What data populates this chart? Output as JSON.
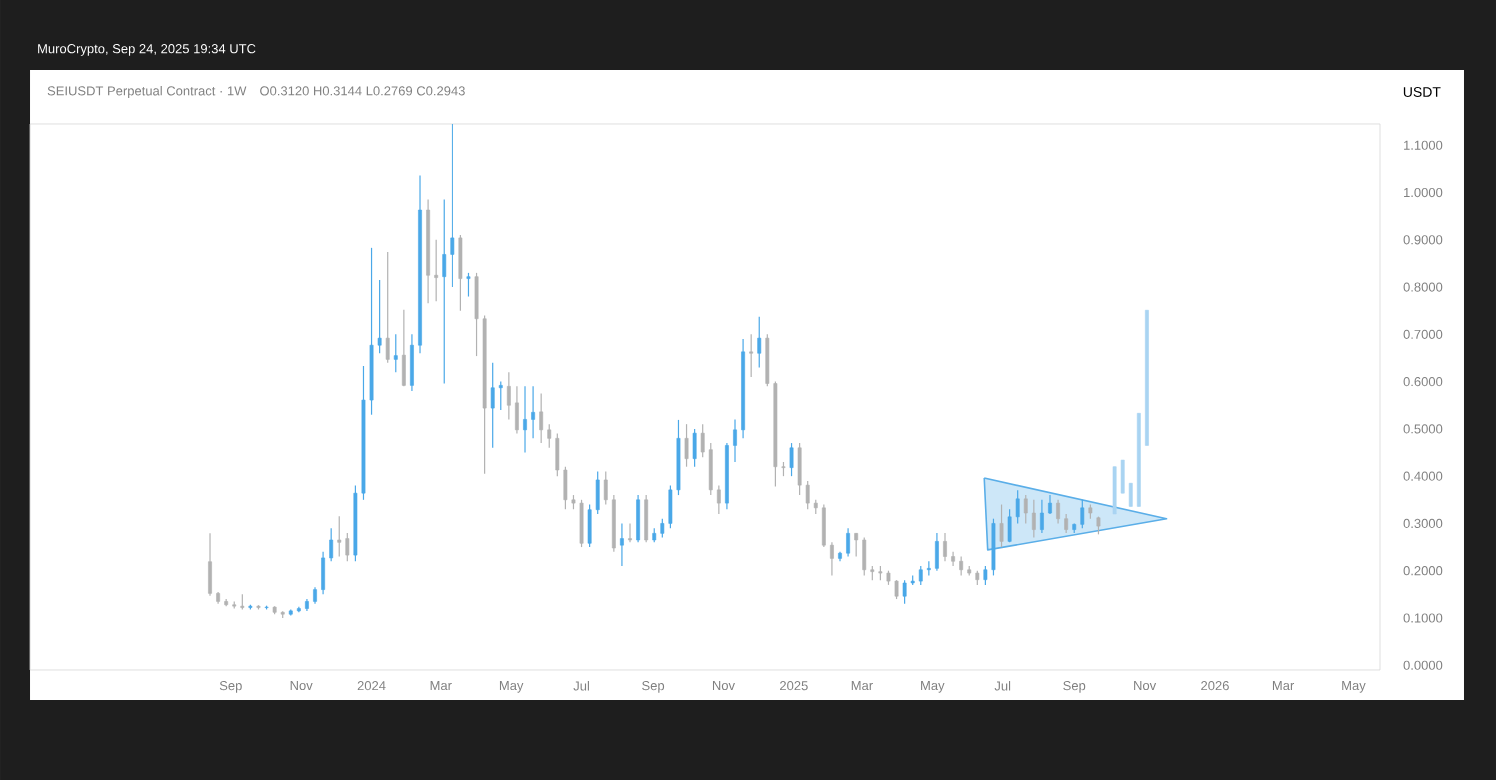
{
  "chart_data": {
    "type": "candlestick",
    "title": "SEIUSDT Perpetual Contract · 1W",
    "subtitle": "O0.3120  H0.3144  L0.2769  C0.2943",
    "ylabel": "USDT",
    "annotations": [
      "MuroCrypto, Sep 24, 2025 19:34 UTC"
    ],
    "xlim": [
      "2023-03-11",
      "2026-05-24"
    ],
    "ylim": [
      -0.01,
      1.145
    ],
    "xticks": [
      {
        "value": "2023-09-01",
        "label": "Sep"
      },
      {
        "value": "2023-11-01",
        "label": "Nov"
      },
      {
        "value": "2024-01-01",
        "label": "2024"
      },
      {
        "value": "2024-03-01",
        "label": "Mar"
      },
      {
        "value": "2024-05-01",
        "label": "May"
      },
      {
        "value": "2024-07-01",
        "label": "Jul"
      },
      {
        "value": "2024-09-01",
        "label": "Sep"
      },
      {
        "value": "2024-11-01",
        "label": "Nov"
      },
      {
        "value": "2025-01-01",
        "label": "2025"
      },
      {
        "value": "2025-03-01",
        "label": "Mar"
      },
      {
        "value": "2025-05-01",
        "label": "May"
      },
      {
        "value": "2025-07-01",
        "label": "Jul"
      },
      {
        "value": "2025-09-01",
        "label": "Sep"
      },
      {
        "value": "2025-11-01",
        "label": "Nov"
      },
      {
        "value": "2026-01-01",
        "label": "2026"
      },
      {
        "value": "2026-03-01",
        "label": "Mar"
      },
      {
        "value": "2026-05-01",
        "label": "May"
      }
    ],
    "yticks": [
      {
        "value": 0,
        "label": "0.0000"
      },
      {
        "value": 0.1,
        "label": "0.1000"
      },
      {
        "value": 0.2,
        "label": "0.2000"
      },
      {
        "value": 0.3,
        "label": "0.3000"
      },
      {
        "value": 0.4,
        "label": "0.4000"
      },
      {
        "value": 0.5,
        "label": "0.5000"
      },
      {
        "value": 0.6,
        "label": "0.6000"
      },
      {
        "value": 0.7,
        "label": "0.7000"
      },
      {
        "value": 0.8,
        "label": "0.8000"
      },
      {
        "value": 0.9,
        "label": "0.9000"
      },
      {
        "value": 1.0,
        "label": "1.0000"
      },
      {
        "value": 1.1,
        "label": "1.1000"
      }
    ],
    "series": [
      {
        "type": "area",
        "color": "#5aaee8",
        "x": [
          "2025-06-15",
          "2025-11-20",
          "2025-06-18",
          "2025-06-15"
        ],
        "values": [
          0.396,
          0.31,
          0.244,
          0.396
        ]
      },
      {
        "x": [
          "2023-08-14",
          "2023-08-21",
          "2023-08-28",
          "2023-09-04",
          "2023-09-11",
          "2023-09-18",
          "2023-09-25",
          "2023-10-02",
          "2023-10-09",
          "2023-10-16",
          "2023-10-23",
          "2023-10-30",
          "2023-11-06",
          "2023-11-13",
          "2023-11-20",
          "2023-11-27",
          "2023-12-04",
          "2023-12-11",
          "2023-12-18",
          "2023-12-25",
          "2024-01-01",
          "2024-01-08",
          "2024-01-15",
          "2024-01-22",
          "2024-01-29",
          "2024-02-05",
          "2024-02-12",
          "2024-02-19",
          "2024-02-26",
          "2024-03-04",
          "2024-03-11",
          "2024-03-18",
          "2024-03-25",
          "2024-04-01",
          "2024-04-08",
          "2024-04-15",
          "2024-04-22",
          "2024-04-29",
          "2024-05-06",
          "2024-05-13",
          "2024-05-20",
          "2024-05-27",
          "2024-06-03",
          "2024-06-10",
          "2024-06-17",
          "2024-06-24",
          "2024-07-01",
          "2024-07-08",
          "2024-07-15",
          "2024-07-22",
          "2024-07-29",
          "2024-08-05",
          "2024-08-12",
          "2024-08-19",
          "2024-08-26",
          "2024-09-02",
          "2024-09-09",
          "2024-09-16",
          "2024-09-23",
          "2024-09-30",
          "2024-10-07",
          "2024-10-14",
          "2024-10-21",
          "2024-10-28",
          "2024-11-04",
          "2024-11-11",
          "2024-11-18",
          "2024-11-25",
          "2024-12-02",
          "2024-12-09",
          "2024-12-16",
          "2024-12-23",
          "2024-12-30",
          "2025-01-06",
          "2025-01-13",
          "2025-01-20",
          "2025-01-27",
          "2025-02-03",
          "2025-02-10",
          "2025-02-17",
          "2025-02-24",
          "2025-03-03",
          "2025-03-10",
          "2025-03-17",
          "2025-03-24",
          "2025-03-31",
          "2025-04-07",
          "2025-04-14",
          "2025-04-21",
          "2025-04-28",
          "2025-05-05",
          "2025-05-12",
          "2025-05-19",
          "2025-05-26",
          "2025-06-02",
          "2025-06-09",
          "2025-06-16",
          "2025-06-23",
          "2025-06-30",
          "2025-07-07",
          "2025-07-14",
          "2025-07-21",
          "2025-07-28",
          "2025-08-04",
          "2025-08-11",
          "2025-08-18",
          "2025-08-25",
          "2025-09-01",
          "2025-09-08",
          "2025-09-15",
          "2025-09-22"
        ],
        "ohlc": [
          [
            0.219,
            0.279,
            0.147,
            0.152
          ],
          [
            0.152,
            0.155,
            0.13,
            0.135
          ],
          [
            0.135,
            0.14,
            0.125,
            0.128
          ],
          [
            0.128,
            0.135,
            0.12,
            0.125
          ],
          [
            0.125,
            0.15,
            0.118,
            0.122
          ],
          [
            0.122,
            0.128,
            0.118,
            0.125
          ],
          [
            0.125,
            0.127,
            0.118,
            0.122
          ],
          [
            0.122,
            0.126,
            0.118,
            0.123
          ],
          [
            0.123,
            0.125,
            0.108,
            0.112
          ],
          [
            0.112,
            0.114,
            0.1,
            0.108
          ],
          [
            0.108,
            0.118,
            0.105,
            0.115
          ],
          [
            0.115,
            0.124,
            0.112,
            0.12
          ],
          [
            0.12,
            0.14,
            0.115,
            0.135
          ],
          [
            0.135,
            0.165,
            0.13,
            0.16
          ],
          [
            0.16,
            0.24,
            0.15,
            0.227
          ],
          [
            0.227,
            0.29,
            0.22,
            0.265
          ],
          [
            0.265,
            0.315,
            0.23,
            0.26
          ],
          [
            0.268,
            0.28,
            0.22,
            0.233
          ],
          [
            0.233,
            0.38,
            0.22,
            0.364
          ],
          [
            0.364,
            0.633,
            0.35,
            0.561
          ],
          [
            0.561,
            0.883,
            0.53,
            0.677
          ],
          [
            0.677,
            0.815,
            0.66,
            0.692
          ],
          [
            0.692,
            0.874,
            0.64,
            0.647
          ],
          [
            0.647,
            0.7,
            0.62,
            0.655
          ],
          [
            0.656,
            0.752,
            0.59,
            0.592
          ],
          [
            0.592,
            0.7,
            0.58,
            0.677
          ],
          [
            0.677,
            1.036,
            0.66,
            0.963
          ],
          [
            0.963,
            0.985,
            0.766,
            0.825
          ],
          [
            0.825,
            0.9,
            0.77,
            0.82
          ],
          [
            0.822,
            0.985,
            0.596,
            0.869
          ],
          [
            0.869,
            1.146,
            0.8,
            0.904
          ],
          [
            0.904,
            0.91,
            0.75,
            0.818
          ],
          [
            0.818,
            0.83,
            0.78,
            0.822
          ],
          [
            0.822,
            0.83,
            0.654,
            0.733
          ],
          [
            0.733,
            0.74,
            0.405,
            0.544
          ],
          [
            0.544,
            0.64,
            0.46,
            0.587
          ],
          [
            0.587,
            0.6,
            0.54,
            0.592
          ],
          [
            0.59,
            0.62,
            0.52,
            0.55
          ],
          [
            0.555,
            0.59,
            0.49,
            0.498
          ],
          [
            0.498,
            0.59,
            0.45,
            0.52
          ],
          [
            0.52,
            0.59,
            0.48,
            0.535
          ],
          [
            0.536,
            0.575,
            0.47,
            0.498
          ],
          [
            0.498,
            0.51,
            0.46,
            0.48
          ],
          [
            0.48,
            0.49,
            0.4,
            0.413
          ],
          [
            0.413,
            0.42,
            0.33,
            0.35
          ],
          [
            0.35,
            0.36,
            0.33,
            0.343
          ],
          [
            0.343,
            0.35,
            0.25,
            0.258
          ],
          [
            0.258,
            0.34,
            0.25,
            0.329
          ],
          [
            0.329,
            0.41,
            0.32,
            0.392
          ],
          [
            0.392,
            0.41,
            0.34,
            0.35
          ],
          [
            0.35,
            0.36,
            0.24,
            0.248
          ],
          [
            0.254,
            0.3,
            0.21,
            0.268
          ],
          [
            0.268,
            0.3,
            0.26,
            0.265
          ],
          [
            0.265,
            0.36,
            0.26,
            0.35
          ],
          [
            0.35,
            0.36,
            0.26,
            0.265
          ],
          [
            0.265,
            0.29,
            0.26,
            0.279
          ],
          [
            0.279,
            0.31,
            0.27,
            0.3
          ],
          [
            0.3,
            0.38,
            0.29,
            0.371
          ],
          [
            0.371,
            0.519,
            0.36,
            0.48
          ],
          [
            0.48,
            0.51,
            0.42,
            0.437
          ],
          [
            0.437,
            0.5,
            0.42,
            0.491
          ],
          [
            0.491,
            0.51,
            0.44,
            0.451
          ],
          [
            0.456,
            0.47,
            0.36,
            0.371
          ],
          [
            0.371,
            0.38,
            0.32,
            0.343
          ],
          [
            0.343,
            0.47,
            0.33,
            0.465
          ],
          [
            0.465,
            0.52,
            0.43,
            0.498
          ],
          [
            0.498,
            0.69,
            0.48,
            0.663
          ],
          [
            0.663,
            0.7,
            0.61,
            0.66
          ],
          [
            0.66,
            0.737,
            0.63,
            0.692
          ],
          [
            0.692,
            0.7,
            0.59,
            0.596
          ],
          [
            0.596,
            0.6,
            0.378,
            0.42
          ],
          [
            0.42,
            0.43,
            0.4,
            0.418
          ],
          [
            0.418,
            0.47,
            0.4,
            0.46
          ],
          [
            0.46,
            0.47,
            0.36,
            0.381
          ],
          [
            0.381,
            0.39,
            0.33,
            0.343
          ],
          [
            0.343,
            0.35,
            0.32,
            0.333
          ],
          [
            0.333,
            0.34,
            0.25,
            0.254
          ],
          [
            0.254,
            0.26,
            0.19,
            0.226
          ],
          [
            0.226,
            0.24,
            0.22,
            0.237
          ],
          [
            0.237,
            0.29,
            0.23,
            0.279
          ],
          [
            0.279,
            0.28,
            0.23,
            0.265
          ],
          [
            0.265,
            0.27,
            0.19,
            0.202
          ],
          [
            0.202,
            0.21,
            0.18,
            0.198
          ],
          [
            0.198,
            0.21,
            0.18,
            0.195
          ],
          [
            0.195,
            0.2,
            0.17,
            0.178
          ],
          [
            0.178,
            0.18,
            0.14,
            0.146
          ],
          [
            0.146,
            0.18,
            0.13,
            0.174
          ],
          [
            0.174,
            0.19,
            0.17,
            0.178
          ],
          [
            0.178,
            0.21,
            0.17,
            0.202
          ],
          [
            0.202,
            0.22,
            0.19,
            0.205
          ],
          [
            0.205,
            0.28,
            0.2,
            0.262
          ],
          [
            0.262,
            0.28,
            0.22,
            0.23
          ],
          [
            0.23,
            0.24,
            0.21,
            0.22
          ],
          [
            0.22,
            0.23,
            0.19,
            0.202
          ],
          [
            0.202,
            0.21,
            0.19,
            0.195
          ],
          [
            0.195,
            0.2,
            0.17,
            0.181
          ],
          [
            0.181,
            0.21,
            0.17,
            0.202
          ],
          [
            0.202,
            0.31,
            0.19,
            0.3
          ],
          [
            0.3,
            0.34,
            0.25,
            0.262
          ],
          [
            0.262,
            0.33,
            0.26,
            0.314
          ],
          [
            0.314,
            0.37,
            0.3,
            0.352
          ],
          [
            0.352,
            0.36,
            0.3,
            0.322
          ],
          [
            0.322,
            0.35,
            0.27,
            0.287
          ],
          [
            0.287,
            0.35,
            0.28,
            0.322
          ],
          [
            0.322,
            0.36,
            0.32,
            0.343
          ],
          [
            0.343,
            0.35,
            0.3,
            0.31
          ],
          [
            0.31,
            0.32,
            0.28,
            0.287
          ],
          [
            0.287,
            0.3,
            0.28,
            0.298
          ],
          [
            0.298,
            0.35,
            0.29,
            0.333
          ],
          [
            0.333,
            0.34,
            0.31,
            0.322
          ],
          [
            0.312,
            0.3144,
            0.2769,
            0.2943
          ]
        ],
        "colors": [
          "#b2b2b2",
          "#b2b2b2",
          "#b2b2b2",
          "#b2b2b2",
          "#b2b2b2",
          "#4aa8e8",
          "#b2b2b2",
          "#4aa8e8",
          "#b2b2b2",
          "#b2b2b2",
          "#4aa8e8",
          "#4aa8e8",
          "#4aa8e8",
          "#4aa8e8",
          "#4aa8e8",
          "#4aa8e8",
          "#b2b2b2",
          "#b2b2b2",
          "#4aa8e8",
          "#4aa8e8",
          "#4aa8e8",
          "#4aa8e8",
          "#b2b2b2",
          "#4aa8e8",
          "#b2b2b2",
          "#4aa8e8",
          "#4aa8e8",
          "#b2b2b2",
          "#b2b2b2",
          "#4aa8e8",
          "#4aa8e8",
          "#b2b2b2",
          "#4aa8e8",
          "#b2b2b2",
          "#b2b2b2",
          "#4aa8e8",
          "#4aa8e8",
          "#b2b2b2",
          "#b2b2b2",
          "#4aa8e8",
          "#4aa8e8",
          "#b2b2b2",
          "#b2b2b2",
          "#b2b2b2",
          "#b2b2b2",
          "#b2b2b2",
          "#b2b2b2",
          "#4aa8e8",
          "#4aa8e8",
          "#b2b2b2",
          "#b2b2b2",
          "#4aa8e8",
          "#b2b2b2",
          "#4aa8e8",
          "#b2b2b2",
          "#4aa8e8",
          "#4aa8e8",
          "#4aa8e8",
          "#4aa8e8",
          "#b2b2b2",
          "#4aa8e8",
          "#b2b2b2",
          "#b2b2b2",
          "#b2b2b2",
          "#4aa8e8",
          "#4aa8e8",
          "#4aa8e8",
          "#b2b2b2",
          "#4aa8e8",
          "#b2b2b2",
          "#b2b2b2",
          "#b2b2b2",
          "#4aa8e8",
          "#b2b2b2",
          "#b2b2b2",
          "#b2b2b2",
          "#b2b2b2",
          "#b2b2b2",
          "#4aa8e8",
          "#4aa8e8",
          "#b2b2b2",
          "#b2b2b2",
          "#b2b2b2",
          "#b2b2b2",
          "#b2b2b2",
          "#b2b2b2",
          "#4aa8e8",
          "#4aa8e8",
          "#4aa8e8",
          "#4aa8e8",
          "#4aa8e8",
          "#b2b2b2",
          "#b2b2b2",
          "#b2b2b2",
          "#b2b2b2",
          "#b2b2b2",
          "#4aa8e8",
          "#4aa8e8",
          "#b2b2b2",
          "#4aa8e8",
          "#4aa8e8",
          "#b2b2b2",
          "#b2b2b2",
          "#4aa8e8",
          "#4aa8e8",
          "#b2b2b2",
          "#b2b2b2",
          "#4aa8e8",
          "#4aa8e8",
          "#b2b2b2",
          "#b2b2b2"
        ]
      },
      {
        "color": "#a9d4f2",
        "x": [
          "2025-10-06",
          "2025-10-13",
          "2025-10-20",
          "2025-10-27",
          "2025-11-03"
        ],
        "ohlc": [
          [
            0.32,
            0.42,
            0.32,
            0.42
          ],
          [
            0.364,
            0.434,
            0.364,
            0.434
          ],
          [
            0.336,
            0.385,
            0.336,
            0.385
          ],
          [
            0.336,
            0.533,
            0.336,
            0.533
          ],
          [
            0.465,
            0.751,
            0.465,
            0.751
          ]
        ]
      }
    ]
  }
}
